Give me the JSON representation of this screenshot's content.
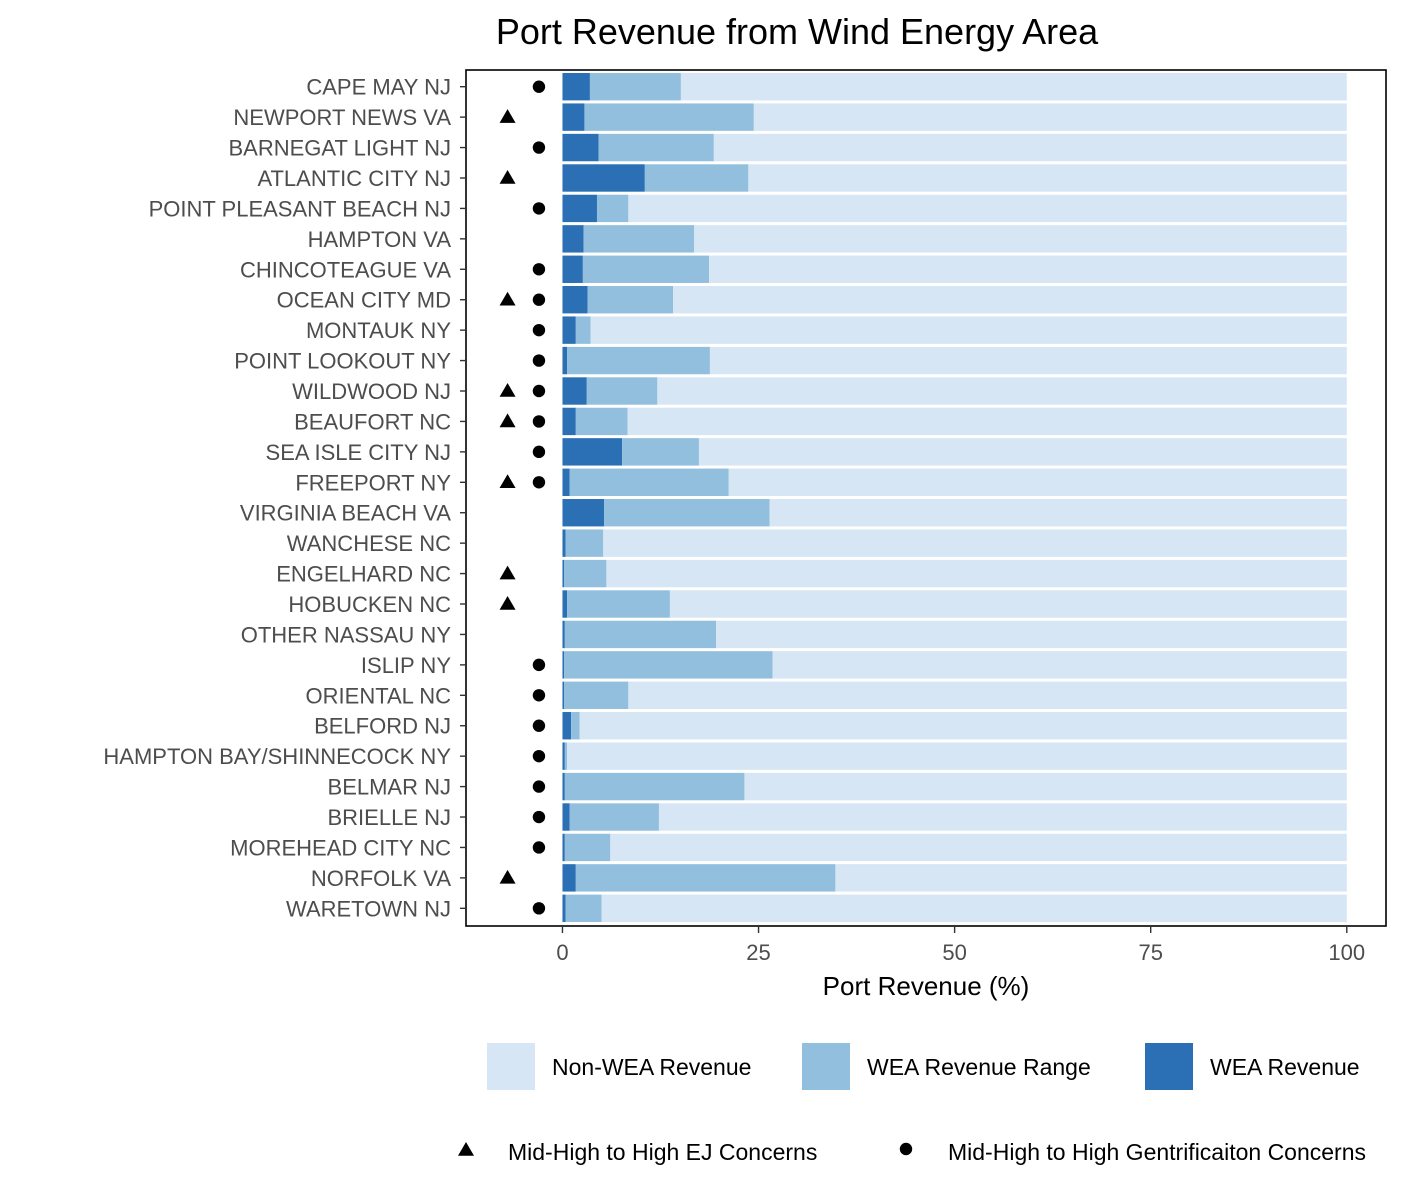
{
  "chart_data": {
    "type": "bar",
    "orientation": "horizontal",
    "stacked": true,
    "title": "Port Revenue from Wind Energy Area",
    "xlabel": "Port Revenue (%)",
    "ylabel": "",
    "xlim": [
      -12.3,
      105
    ],
    "xticks": [
      0,
      25,
      50,
      75,
      100
    ],
    "grid": false,
    "categories": [
      "CAPE MAY NJ",
      "NEWPORT NEWS VA",
      "BARNEGAT LIGHT NJ",
      "ATLANTIC CITY NJ",
      "POINT PLEASANT BEACH NJ",
      "HAMPTON VA",
      "CHINCOTEAGUE VA",
      "OCEAN CITY MD",
      "MONTAUK NY",
      "POINT LOOKOUT NY",
      "WILDWOOD NJ",
      "BEAUFORT NC",
      "SEA ISLE CITY NJ",
      "FREEPORT NY",
      "VIRGINIA BEACH VA",
      "WANCHESE NC",
      "ENGELHARD NC",
      "HOBUCKEN NC",
      "OTHER NASSAU NY",
      "ISLIP NY",
      "ORIENTAL NC",
      "BELFORD NJ",
      "HAMPTON BAY/SHINNECOCK NY",
      "BELMAR NJ",
      "BRIELLE NJ",
      "MOREHEAD CITY NC",
      "NORFOLK VA",
      "WARETOWN NJ"
    ],
    "series": [
      {
        "name": "WEA Revenue",
        "color": "#2b6fb4",
        "values": [
          3.5,
          2.8,
          4.6,
          10.5,
          4.4,
          2.7,
          2.6,
          3.2,
          1.7,
          0.6,
          3.1,
          1.7,
          7.6,
          0.9,
          5.3,
          0.4,
          0.2,
          0.6,
          0.3,
          0.2,
          0.2,
          1.1,
          0.3,
          0.3,
          0.9,
          0.3,
          1.7,
          0.4
        ]
      },
      {
        "name": "WEA Revenue Range",
        "color": "#92bfdd",
        "values": [
          11.6,
          21.6,
          14.7,
          13.2,
          4.0,
          14.1,
          16.1,
          10.9,
          1.9,
          18.2,
          9.0,
          6.6,
          9.8,
          20.3,
          21.1,
          4.8,
          5.4,
          13.1,
          19.3,
          26.6,
          8.2,
          1.1,
          0.3,
          22.9,
          11.4,
          5.8,
          33.1,
          4.6
        ]
      },
      {
        "name": "Non-WEA Revenue",
        "color": "#d6e6f5",
        "values": [
          84.9,
          75.6,
          80.7,
          76.3,
          91.6,
          83.2,
          81.3,
          85.9,
          96.4,
          81.2,
          87.9,
          91.7,
          82.6,
          78.8,
          73.6,
          94.8,
          94.4,
          86.3,
          80.4,
          73.2,
          91.6,
          97.8,
          99.4,
          76.8,
          87.7,
          93.9,
          65.2,
          95.0
        ]
      }
    ],
    "ej_concern": [
      false,
      true,
      false,
      true,
      false,
      false,
      false,
      true,
      false,
      false,
      true,
      true,
      false,
      true,
      false,
      false,
      true,
      true,
      false,
      false,
      false,
      false,
      false,
      false,
      false,
      false,
      true,
      false
    ],
    "gentrification_concern": [
      true,
      false,
      true,
      false,
      true,
      false,
      true,
      true,
      true,
      true,
      true,
      true,
      true,
      true,
      false,
      false,
      false,
      false,
      false,
      true,
      true,
      true,
      true,
      true,
      true,
      true,
      false,
      true
    ],
    "marker_x": {
      "ej": -7.0,
      "gentrification": -3.0
    },
    "legend": {
      "placement": "bottom",
      "fill_entries": [
        "Non-WEA Revenue",
        "WEA Revenue Range",
        "WEA Revenue"
      ],
      "marker_entries": [
        {
          "shape": "triangle",
          "label": "Mid-High to High EJ Concerns"
        },
        {
          "shape": "circle",
          "label": "Mid-High to High Gentrificaiton Concerns"
        }
      ]
    }
  }
}
